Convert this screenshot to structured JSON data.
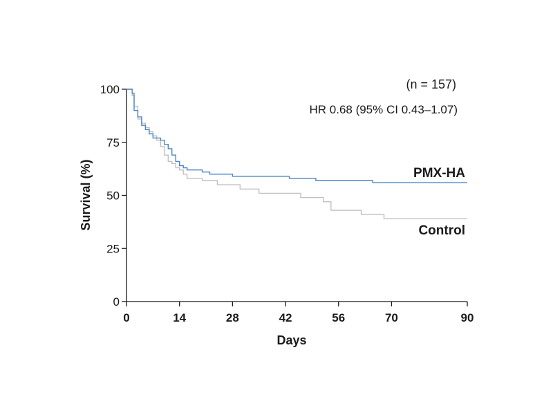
{
  "chart_data": {
    "type": "line",
    "title": "",
    "xlabel": "Days",
    "ylabel": "Survival (%)",
    "xlim": [
      0,
      90
    ],
    "ylim": [
      0,
      100
    ],
    "x_ticks": [
      0,
      14,
      28,
      42,
      56,
      70,
      90
    ],
    "y_ticks": [
      0,
      25,
      50,
      75,
      100
    ],
    "grid": false,
    "annotations": {
      "n": "(n = 157)",
      "hr": "HR 0.68 (95% CI 0.43–1.07)"
    },
    "series": [
      {
        "name": "PMX-HA",
        "color": "#4a86c8",
        "points": [
          [
            0,
            100
          ],
          [
            1,
            100
          ],
          [
            1.5,
            98
          ],
          [
            2,
            90
          ],
          [
            3,
            87
          ],
          [
            4,
            83
          ],
          [
            5,
            81
          ],
          [
            6,
            79
          ],
          [
            7,
            77
          ],
          [
            8,
            77
          ],
          [
            9,
            76
          ],
          [
            10,
            74
          ],
          [
            11,
            72
          ],
          [
            12,
            69
          ],
          [
            13,
            66
          ],
          [
            14,
            64
          ],
          [
            15,
            63
          ],
          [
            16,
            62
          ],
          [
            18,
            62
          ],
          [
            20,
            61
          ],
          [
            22,
            60
          ],
          [
            25,
            60
          ],
          [
            28,
            59
          ],
          [
            32,
            59
          ],
          [
            38,
            59
          ],
          [
            43,
            58
          ],
          [
            50,
            57
          ],
          [
            58,
            57
          ],
          [
            65,
            56
          ],
          [
            70,
            56
          ],
          [
            80,
            56
          ],
          [
            90,
            56
          ]
        ]
      },
      {
        "name": "Control",
        "color": "#c0c0c0",
        "points": [
          [
            0,
            100
          ],
          [
            1,
            100
          ],
          [
            1.5,
            97
          ],
          [
            2,
            92
          ],
          [
            3,
            86
          ],
          [
            4,
            84
          ],
          [
            5,
            82
          ],
          [
            6,
            80
          ],
          [
            7,
            78
          ],
          [
            8,
            76
          ],
          [
            9,
            73
          ],
          [
            10,
            69
          ],
          [
            11,
            66
          ],
          [
            12,
            65
          ],
          [
            13,
            63
          ],
          [
            14,
            62
          ],
          [
            15,
            60
          ],
          [
            16,
            58
          ],
          [
            18,
            58
          ],
          [
            20,
            57
          ],
          [
            24,
            55
          ],
          [
            30,
            53
          ],
          [
            35,
            51
          ],
          [
            40,
            51
          ],
          [
            46,
            49
          ],
          [
            52,
            47
          ],
          [
            54,
            43
          ],
          [
            58,
            43
          ],
          [
            62,
            41
          ],
          [
            68,
            39
          ],
          [
            75,
            39
          ],
          [
            90,
            39
          ]
        ]
      }
    ]
  }
}
